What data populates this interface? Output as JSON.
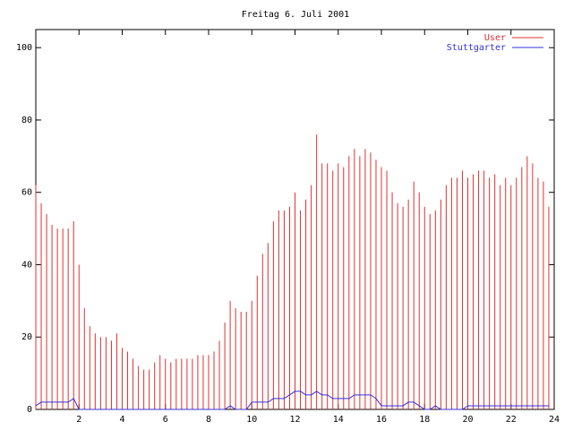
{
  "chart_data": {
    "type": "line",
    "title": "Freitag 6. Juli 2001",
    "x": [
      0,
      0.25,
      0.5,
      0.75,
      1,
      1.25,
      1.5,
      1.75,
      2,
      2.25,
      2.5,
      2.75,
      3,
      3.25,
      3.5,
      3.75,
      4,
      4.25,
      4.5,
      4.75,
      5,
      5.25,
      5.5,
      5.75,
      6,
      6.25,
      6.5,
      6.75,
      7,
      7.25,
      7.5,
      7.75,
      8,
      8.25,
      8.5,
      8.75,
      9,
      9.25,
      9.5,
      9.75,
      10,
      10.25,
      10.5,
      10.75,
      11,
      11.25,
      11.5,
      11.75,
      12,
      12.25,
      12.5,
      12.75,
      13,
      13.25,
      13.5,
      13.75,
      14,
      14.25,
      14.5,
      14.75,
      15,
      15.25,
      15.5,
      15.75,
      16,
      16.25,
      16.5,
      16.75,
      17,
      17.25,
      17.5,
      17.75,
      18,
      18.25,
      18.5,
      18.75,
      19,
      19.25,
      19.5,
      19.75,
      20,
      20.25,
      20.5,
      20.75,
      21,
      21.25,
      21.5,
      21.75,
      22,
      22.25,
      22.5,
      22.75,
      23,
      23.25,
      23.5,
      23.75
    ],
    "series": [
      {
        "name": "User",
        "color": "#e03030",
        "style": "impulses",
        "values": [
          62,
          57,
          54,
          51,
          50,
          50,
          50,
          52,
          40,
          28,
          23,
          21,
          20,
          20,
          19,
          21,
          17,
          16,
          14,
          12,
          11,
          11,
          13,
          15,
          14,
          13,
          14,
          14,
          14,
          14,
          15,
          15,
          15,
          16,
          19,
          24,
          30,
          28,
          27,
          27,
          30,
          37,
          43,
          46,
          52,
          55,
          55,
          56,
          60,
          55,
          58,
          62,
          76,
          68,
          68,
          66,
          68,
          67,
          70,
          72,
          70,
          72,
          71,
          69,
          67,
          66,
          60,
          57,
          56,
          58,
          63,
          60,
          56,
          54,
          55,
          58,
          62,
          64,
          64,
          66,
          64,
          65,
          66,
          66,
          64,
          65,
          62,
          64,
          62,
          64,
          67,
          70,
          68,
          64,
          63,
          56
        ]
      },
      {
        "name": "Stuttgarter",
        "color": "#3030e0",
        "style": "lines",
        "values": [
          1,
          2,
          2,
          2,
          2,
          2,
          2,
          3,
          0,
          0,
          0,
          0,
          0,
          0,
          0,
          0,
          0,
          0,
          0,
          0,
          0,
          0,
          0,
          0,
          0,
          0,
          0,
          0,
          0,
          0,
          0,
          0,
          0,
          0,
          0,
          0,
          1,
          0,
          0,
          0,
          2,
          2,
          2,
          2,
          3,
          3,
          3,
          4,
          5,
          5,
          4,
          4,
          5,
          4,
          4,
          3,
          3,
          3,
          3,
          4,
          4,
          4,
          4,
          3,
          1,
          1,
          1,
          1,
          1,
          2,
          2,
          1,
          0,
          0,
          1,
          0,
          0,
          0,
          0,
          0,
          1,
          1,
          1,
          1,
          1,
          1,
          1,
          1,
          1,
          1,
          1,
          1,
          1,
          1,
          1,
          1
        ]
      }
    ],
    "xlim": [
      0,
      24
    ],
    "xticks": [
      2,
      4,
      6,
      8,
      10,
      12,
      14,
      16,
      18,
      20,
      22,
      24
    ],
    "ylim": [
      0,
      105
    ],
    "yticks": [
      0,
      20,
      40,
      60,
      80,
      100
    ],
    "legend": "top-right"
  }
}
